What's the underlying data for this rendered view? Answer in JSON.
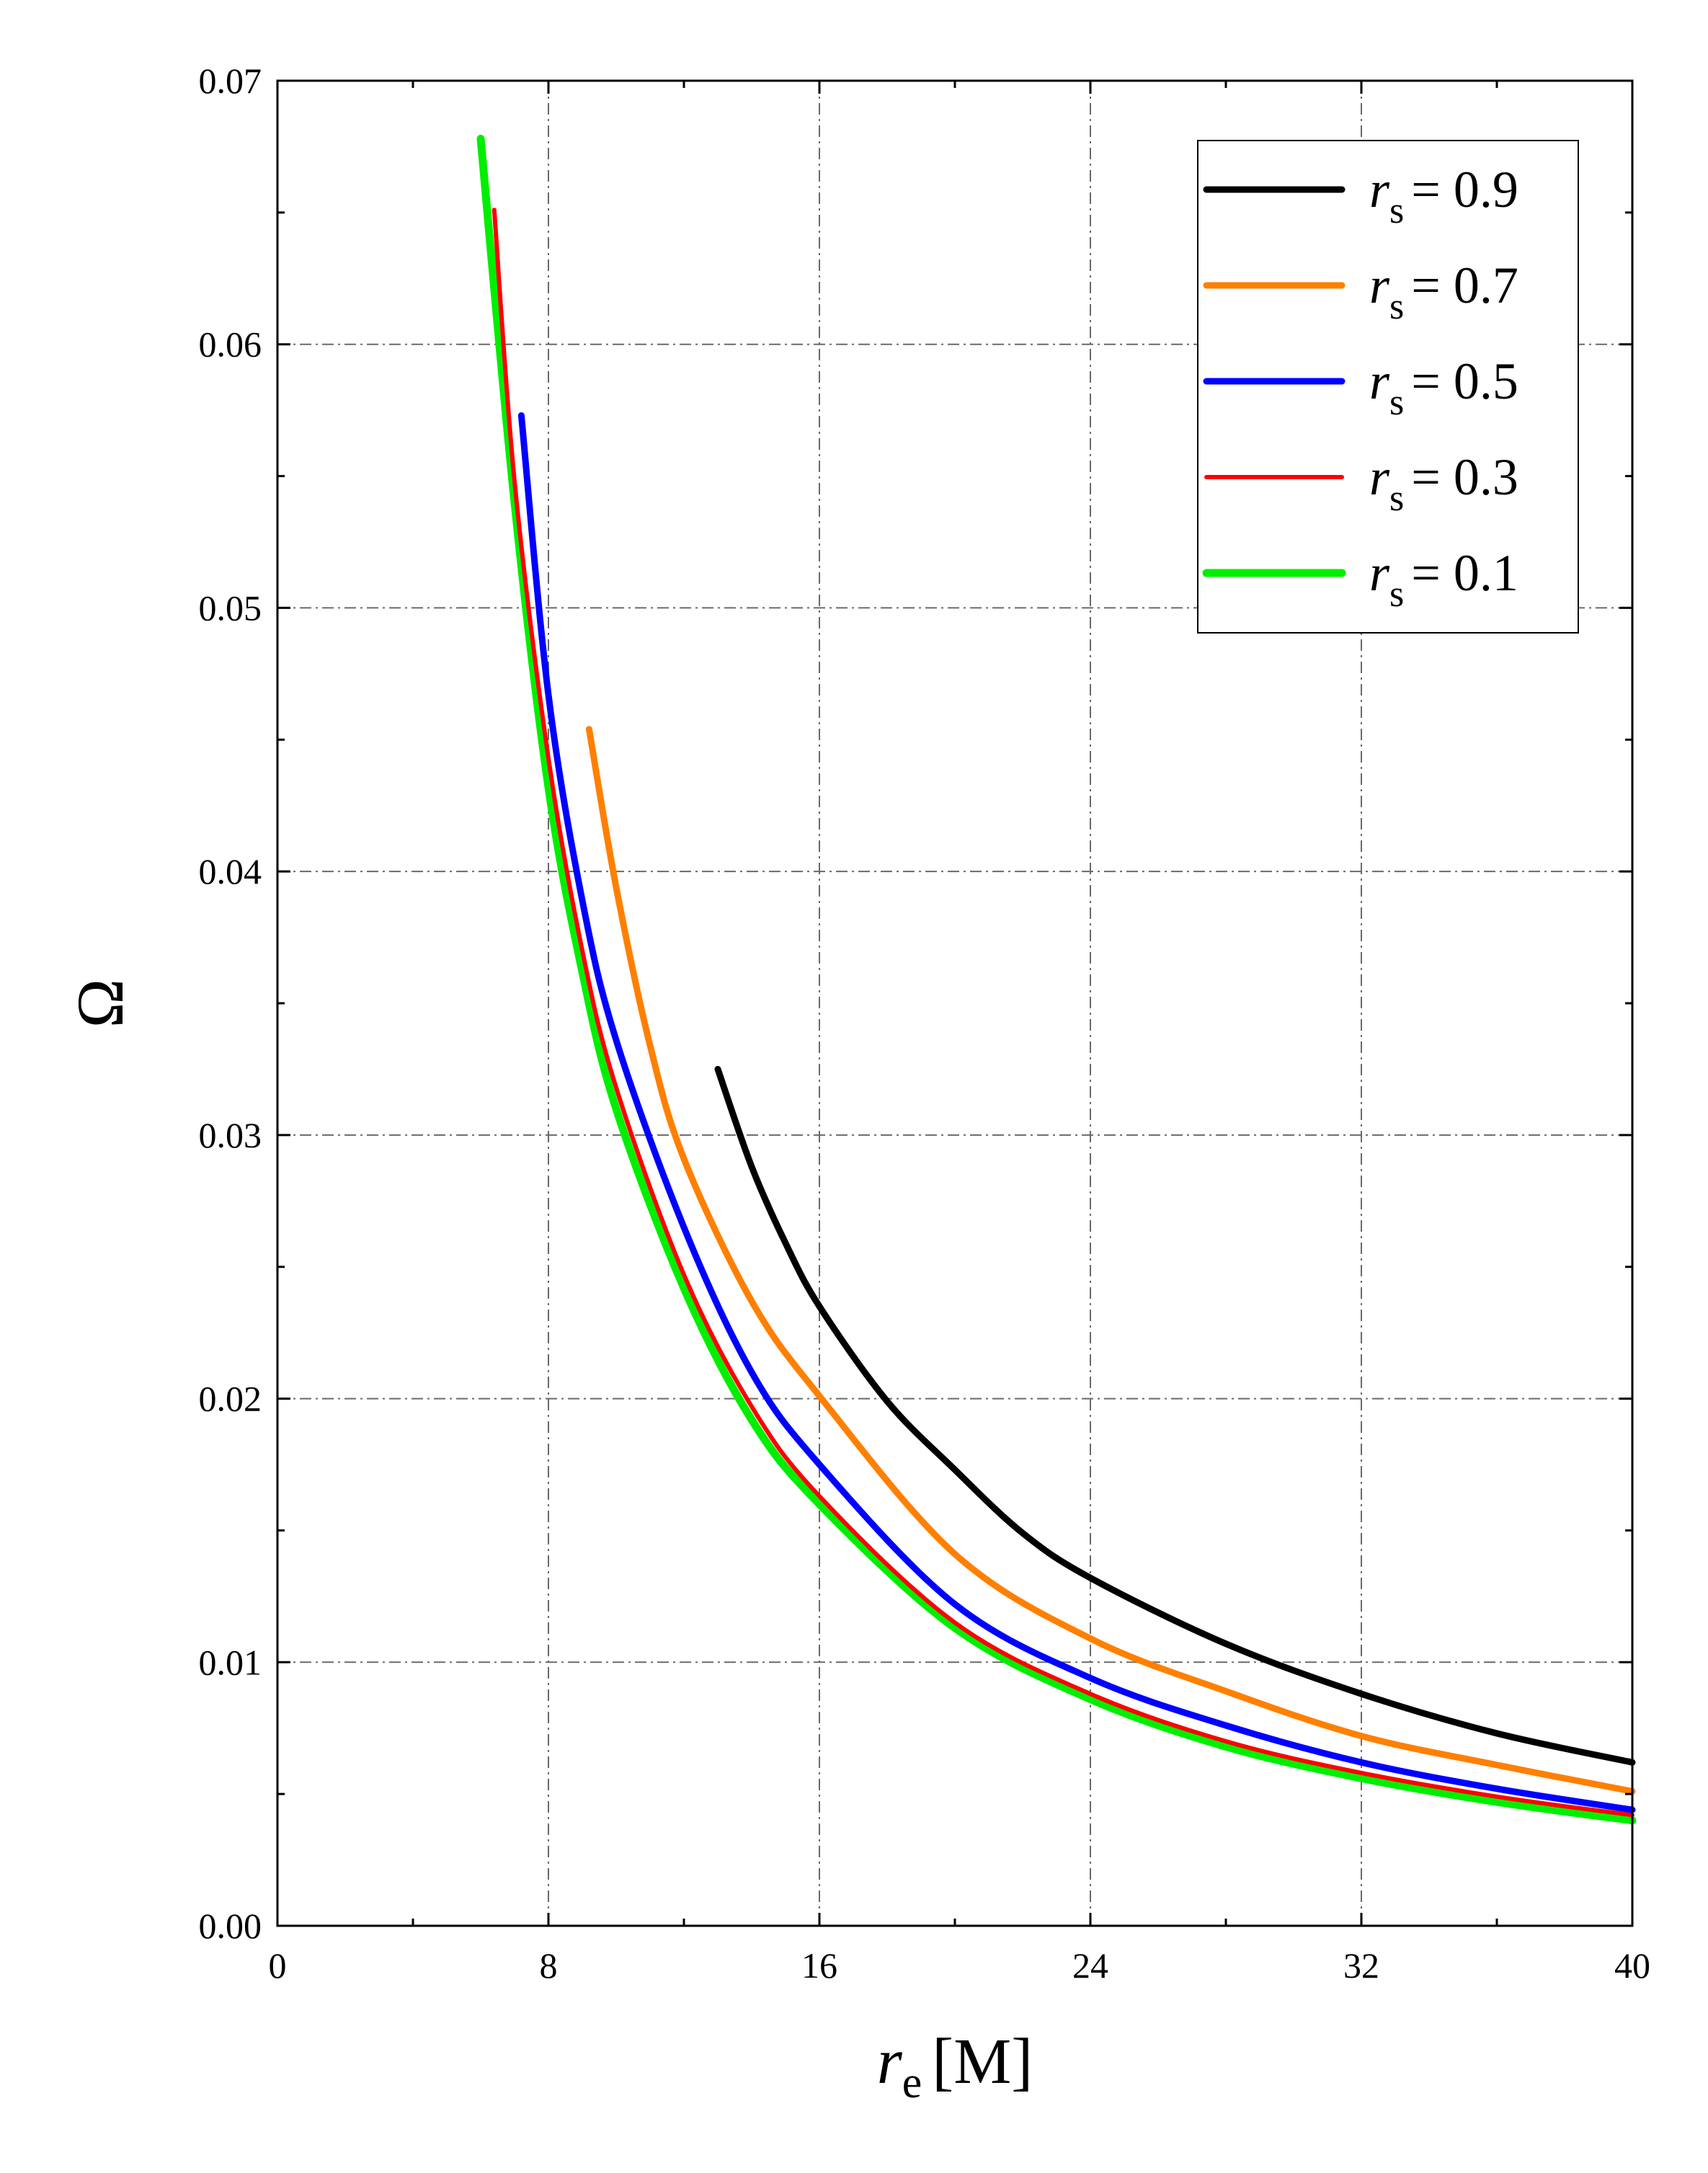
{
  "chart_data": {
    "type": "line",
    "xlabel": {
      "symbol": "r",
      "subscript": "e",
      "unit": "[M]"
    },
    "ylabel": "Ω",
    "xlim": [
      0,
      40
    ],
    "ylim": [
      0.0,
      0.07
    ],
    "xticks": [
      0,
      8,
      16,
      24,
      32,
      40
    ],
    "xtick_labels": [
      "0",
      "8",
      "16",
      "24",
      "32",
      "40"
    ],
    "yticks": [
      0.0,
      0.01,
      0.02,
      0.03,
      0.04,
      0.05,
      0.06,
      0.07
    ],
    "ytick_labels": [
      "0.00",
      "0.01",
      "0.02",
      "0.03",
      "0.04",
      "0.05",
      "0.06",
      "0.07"
    ],
    "x_minor_step": 4,
    "y_minor_step": 0.005,
    "grid": true,
    "legend_position": "top-right",
    "series": [
      {
        "name": "r_s = 0.9",
        "label": {
          "symbol": "r",
          "subscript": "s",
          "value": "= 0.9"
        },
        "color": "#000000",
        "x": [
          13.0,
          14.0,
          15.0,
          16.0,
          18.0,
          20.0,
          22.0,
          24.0,
          28.0,
          32.0,
          36.0,
          40.0
        ],
        "y": [
          0.0325,
          0.0288,
          0.0259,
          0.0235,
          0.0199,
          0.0173,
          0.0149,
          0.0132,
          0.0107,
          0.0088,
          0.0073,
          0.0062
        ]
      },
      {
        "name": "r_s = 0.7",
        "label": {
          "symbol": "r",
          "subscript": "s",
          "value": "= 0.7"
        },
        "color": "#ff8000",
        "x": [
          9.2,
          10.0,
          11.0,
          12.0,
          14.0,
          16.0,
          20.0,
          24.0,
          28.0,
          32.0,
          36.0,
          40.0
        ],
        "y": [
          0.0454,
          0.0394,
          0.0334,
          0.0291,
          0.0237,
          0.0201,
          0.0141,
          0.0109,
          0.0089,
          0.0072,
          0.0061,
          0.0051
        ]
      },
      {
        "name": "r_s = 0.5",
        "label": {
          "symbol": "r",
          "subscript": "s",
          "value": "= 0.5"
        },
        "color": "#0000ff",
        "x": [
          7.2,
          8.0,
          9.0,
          10.0,
          12.0,
          14.0,
          16.0,
          20.0,
          24.0,
          28.0,
          32.0,
          36.0,
          40.0
        ],
        "y": [
          0.0573,
          0.0467,
          0.0389,
          0.0336,
          0.0265,
          0.021,
          0.0175,
          0.0122,
          0.0094,
          0.0076,
          0.0062,
          0.0052,
          0.0044
        ]
      },
      {
        "name": "r_s = 0.3",
        "label": {
          "symbol": "r",
          "subscript": "s",
          "value": "= 0.3"
        },
        "color": "#ff0000",
        "x": [
          6.4,
          7.0,
          8.0,
          9.0,
          10.0,
          12.0,
          14.0,
          16.0,
          20.0,
          24.0,
          28.0,
          32.0,
          36.0,
          40.0
        ],
        "y": [
          0.0651,
          0.0548,
          0.0443,
          0.037,
          0.0318,
          0.0247,
          0.0197,
          0.0163,
          0.0115,
          0.0088,
          0.007,
          0.0058,
          0.0049,
          0.0042
        ]
      },
      {
        "name": "r_s = 0.1",
        "label": {
          "symbol": "r",
          "subscript": "s",
          "value": "= 0.1"
        },
        "color": "#00ee00",
        "x": [
          6.0,
          7.0,
          8.0,
          9.0,
          10.0,
          12.0,
          14.0,
          16.0,
          20.0,
          24.0,
          28.0,
          32.0,
          36.0,
          40.0
        ],
        "y": [
          0.0678,
          0.054,
          0.0432,
          0.0362,
          0.031,
          0.0242,
          0.0192,
          0.016,
          0.0113,
          0.0086,
          0.0068,
          0.0056,
          0.0047,
          0.004
        ]
      }
    ]
  }
}
